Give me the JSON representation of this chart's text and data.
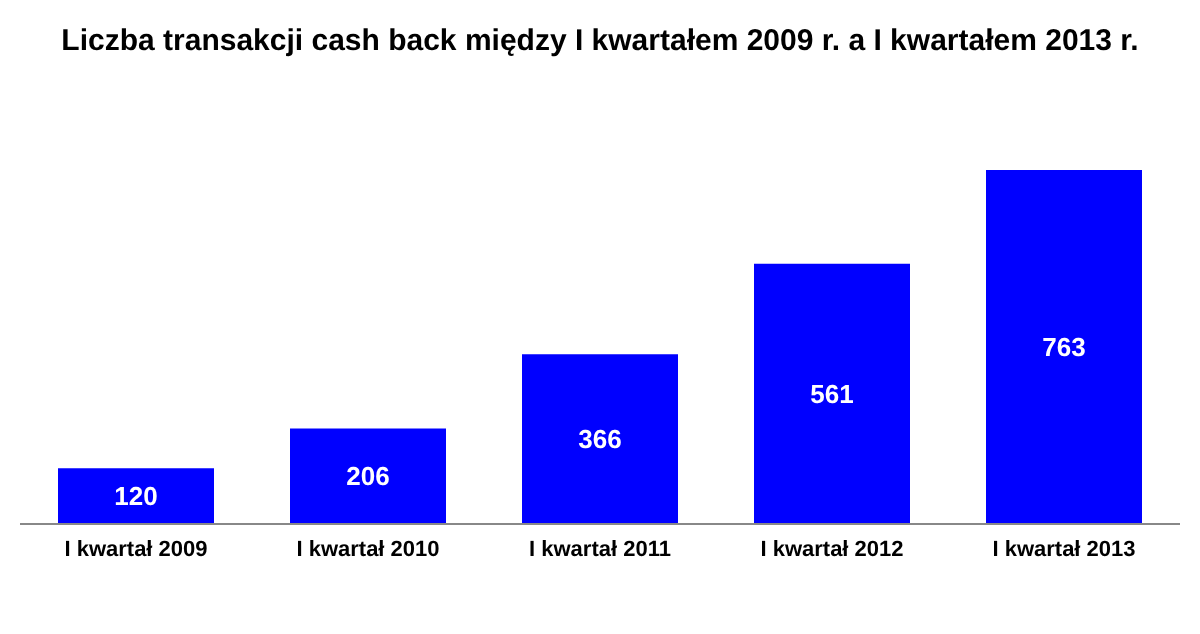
{
  "chart_data": {
    "type": "bar",
    "title": "Liczba transakcji cash back między I kwartałem 2009 r. a I kwartałem 2013 r.",
    "categories": [
      "I kwartał 2009",
      "I kwartał 2010",
      "I kwartał 2011",
      "I kwartał 2012",
      "I kwartał 2013"
    ],
    "values": [
      120,
      206,
      366,
      561,
      763
    ],
    "color": "#0000ff",
    "data_labels": true
  }
}
